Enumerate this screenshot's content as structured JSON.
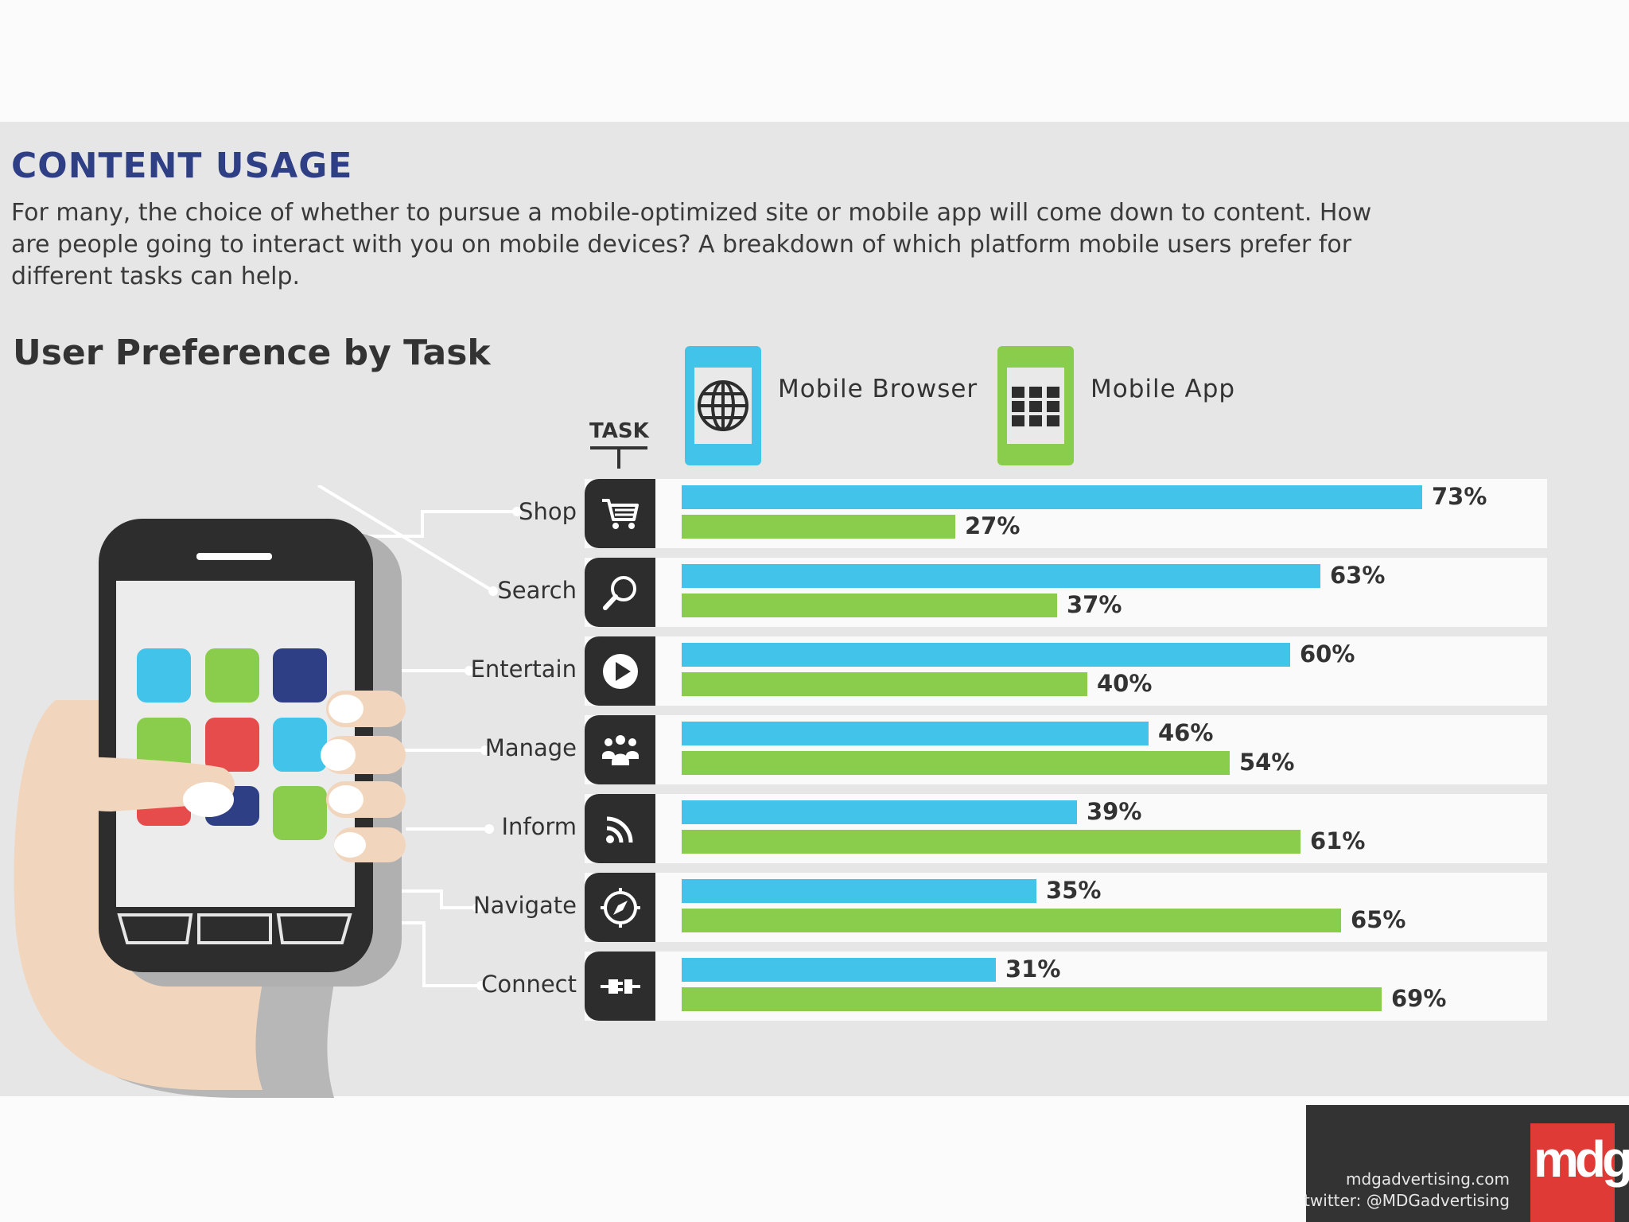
{
  "header": {
    "title": "CONTENT USAGE",
    "intro": "For many, the choice of whether to pursue a mobile-optimized site or mobile app will come down to content. How are people going to interact with you on mobile devices? A breakdown of which platform mobile users prefer for different tasks can help."
  },
  "chart_data": {
    "type": "bar",
    "orientation": "horizontal",
    "title": "User Preference by Task",
    "category_axis_label": "TASK",
    "categories": [
      "Shop",
      "Search",
      "Entertain",
      "Manage",
      "Inform",
      "Navigate",
      "Connect"
    ],
    "series": [
      {
        "name": "Mobile Browser",
        "color": "#42c3ea",
        "values": [
          73,
          63,
          60,
          46,
          39,
          35,
          31
        ],
        "labels": [
          "73%",
          "63%",
          "60%",
          "46%",
          "39%",
          "35%",
          "31%"
        ]
      },
      {
        "name": "Mobile App",
        "color": "#8acd4d",
        "values": [
          27,
          37,
          40,
          54,
          61,
          65,
          69
        ],
        "labels": [
          "27%",
          "37%",
          "40%",
          "54%",
          "61%",
          "65%",
          "69%"
        ]
      }
    ],
    "icons": [
      "cart-icon",
      "magnifier-icon",
      "play-icon",
      "people-icon",
      "rss-icon",
      "compass-icon",
      "plug-icon"
    ],
    "legend_position": "top",
    "grid": false
  },
  "footer": {
    "website": "mdgadvertising.com",
    "twitter": "twitter: @MDGadvertising",
    "logo_text": "mdg",
    "logo_color": "#e03a36"
  }
}
